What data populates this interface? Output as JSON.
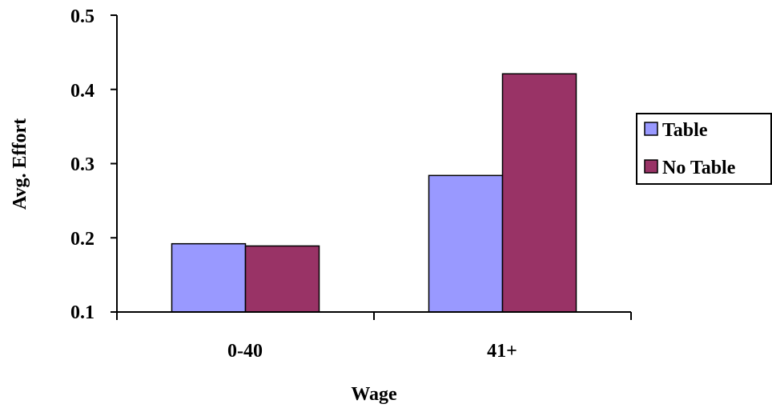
{
  "chart_data": {
    "type": "bar",
    "categories": [
      "0-40",
      "41+"
    ],
    "series": [
      {
        "name": "Table",
        "values": [
          0.192,
          0.284
        ],
        "color": "#9999ff"
      },
      {
        "name": "No Table",
        "values": [
          0.189,
          0.421
        ],
        "color": "#993366"
      }
    ],
    "xlabel": "Wage",
    "ylabel": "Avg. Effort",
    "ylim": [
      0.1,
      0.5
    ],
    "yticks": [
      "0.1",
      "0.2",
      "0.3",
      "0.4",
      "0.5"
    ],
    "grid": false,
    "legend_position": "right"
  }
}
